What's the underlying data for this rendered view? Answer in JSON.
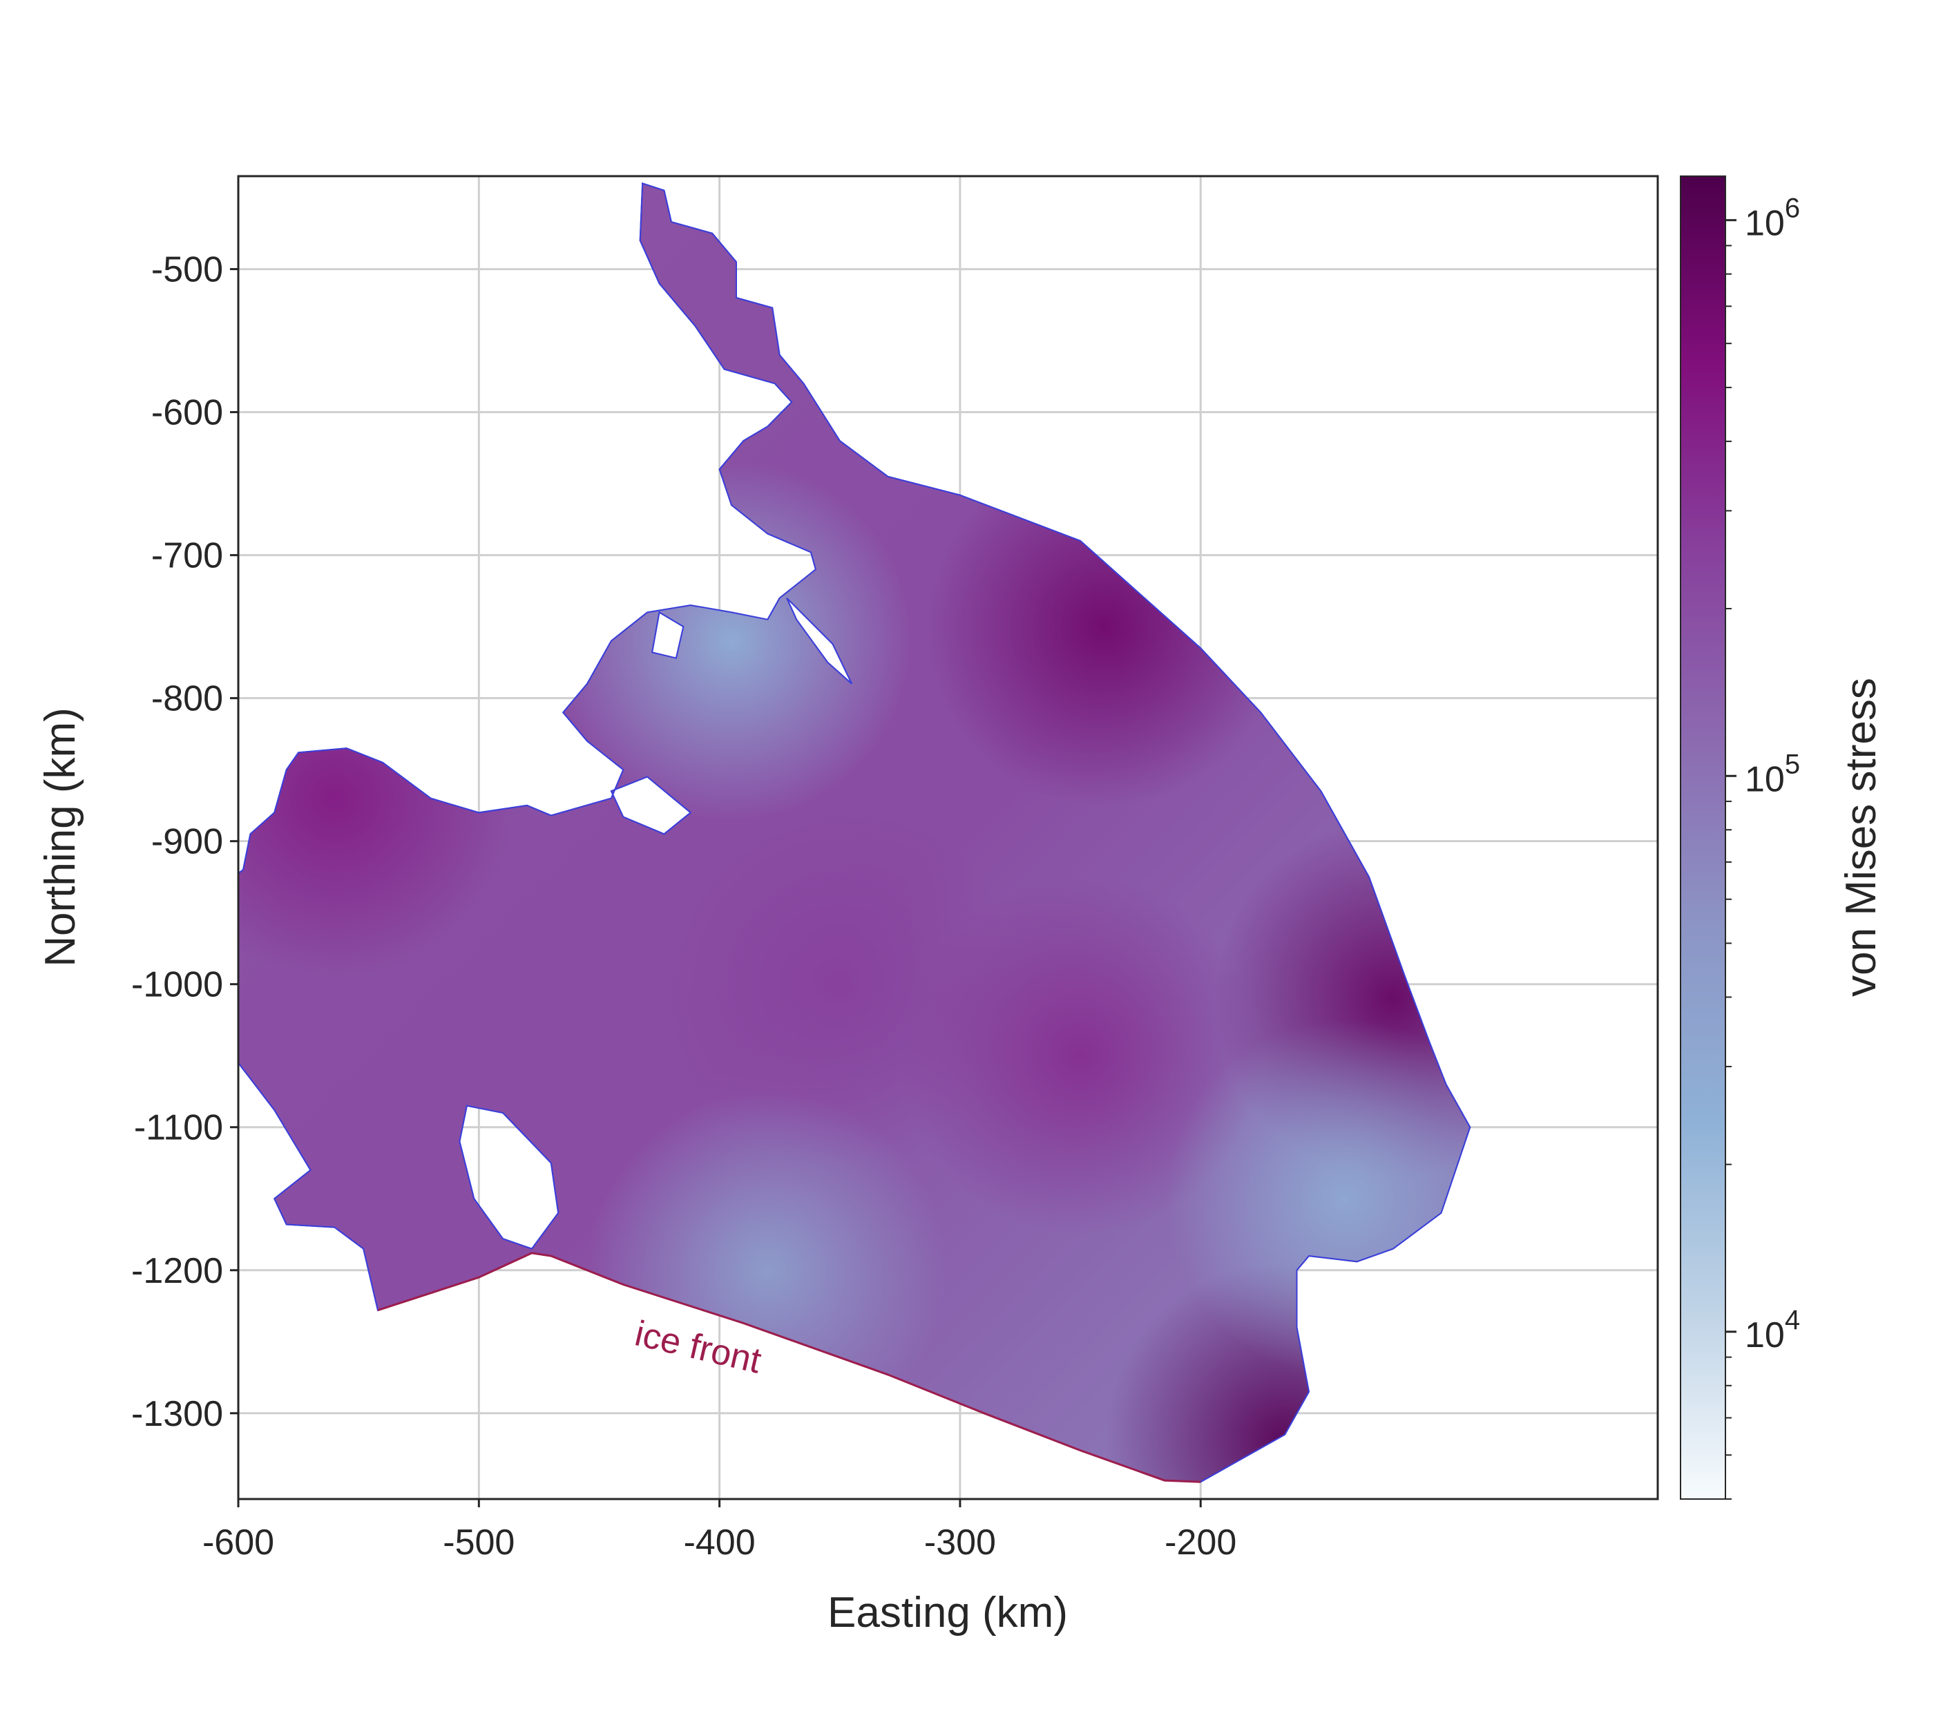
{
  "chart_data": {
    "type": "heatmap",
    "title": "",
    "xlabel": "Easting (km)",
    "ylabel": "Northing (km)",
    "xlim": [
      -600,
      -10
    ],
    "ylim": [
      -1360,
      -435
    ],
    "xticks": [
      -600,
      -500,
      -400,
      -300,
      -200
    ],
    "yticks": [
      -500,
      -600,
      -700,
      -800,
      -900,
      -1000,
      -1100,
      -1200,
      -1300
    ],
    "grid": true,
    "colorbar": {
      "label": "von Mises stress",
      "scale": "log",
      "range": [
        5000,
        1200000
      ],
      "ticks": [
        {
          "value": 10000,
          "base": "10",
          "exp": "4"
        },
        {
          "value": 100000,
          "base": "10",
          "exp": "5"
        },
        {
          "value": 1000000,
          "base": "10",
          "exp": "6"
        }
      ],
      "colors": [
        "#f7fbfd",
        "#bfd3e6",
        "#8fb1d7",
        "#8c96c6",
        "#8c6bb1",
        "#88419d",
        "#810f7c",
        "#4d004b"
      ]
    },
    "annotations": [
      {
        "text": "ice front",
        "x": -410,
        "y": -1262,
        "rotation": 13,
        "color": "#9c1d4d"
      }
    ],
    "ice_front": [
      [
        -542,
        -1228
      ],
      [
        -500,
        -1205
      ],
      [
        -478,
        -1188
      ],
      [
        -470,
        -1190
      ],
      [
        -440,
        -1210
      ],
      [
        -390,
        -1237
      ],
      [
        -330,
        -1273
      ],
      [
        -290,
        -1300
      ],
      [
        -250,
        -1326
      ],
      [
        -215,
        -1347
      ],
      [
        -200,
        -1348
      ]
    ],
    "outline": [
      [
        -432,
        -440
      ],
      [
        -423,
        -445
      ],
      [
        -420,
        -467
      ],
      [
        -403,
        -475
      ],
      [
        -393,
        -495
      ],
      [
        -393,
        -520
      ],
      [
        -378,
        -527
      ],
      [
        -375,
        -560
      ],
      [
        -365,
        -580
      ],
      [
        -350,
        -620
      ],
      [
        -330,
        -645
      ],
      [
        -300,
        -658
      ],
      [
        -250,
        -690
      ],
      [
        -230,
        -720
      ],
      [
        -200,
        -765
      ],
      [
        -175,
        -810
      ],
      [
        -150,
        -865
      ],
      [
        -130,
        -925
      ],
      [
        -115,
        -995
      ],
      [
        -105,
        -1040
      ],
      [
        -98,
        -1070
      ],
      [
        -88,
        -1100
      ],
      [
        -100,
        -1160
      ],
      [
        -120,
        -1185
      ],
      [
        -135,
        -1194
      ],
      [
        -155,
        -1190
      ],
      [
        -160,
        -1200
      ],
      [
        -160,
        -1240
      ],
      [
        -155,
        -1285
      ],
      [
        -165,
        -1315
      ],
      [
        -200,
        -1348
      ],
      [
        -215,
        -1347
      ],
      [
        -250,
        -1326
      ],
      [
        -290,
        -1300
      ],
      [
        -330,
        -1273
      ],
      [
        -390,
        -1237
      ],
      [
        -440,
        -1210
      ],
      [
        -470,
        -1190
      ],
      [
        -478,
        -1188
      ],
      [
        -500,
        -1205
      ],
      [
        -542,
        -1228
      ],
      [
        -548,
        -1185
      ],
      [
        -560,
        -1170
      ],
      [
        -580,
        -1168
      ],
      [
        -585,
        -1150
      ],
      [
        -570,
        -1130
      ],
      [
        -585,
        -1088
      ],
      [
        -600,
        -1055
      ],
      [
        -608,
        -1020
      ],
      [
        -620,
        -995
      ],
      [
        -625,
        -975
      ],
      [
        -625,
        -945
      ],
      [
        -610,
        -935
      ],
      [
        -598,
        -920
      ],
      [
        -595,
        -895
      ],
      [
        -585,
        -880
      ],
      [
        -580,
        -850
      ],
      [
        -575,
        -838
      ],
      [
        -555,
        -835
      ],
      [
        -540,
        -845
      ],
      [
        -520,
        -870
      ],
      [
        -500,
        -880
      ],
      [
        -480,
        -875
      ],
      [
        -470,
        -882
      ],
      [
        -445,
        -870
      ],
      [
        -440,
        -850
      ],
      [
        -455,
        -830
      ],
      [
        -465,
        -810
      ],
      [
        -455,
        -790
      ],
      [
        -445,
        -760
      ],
      [
        -430,
        -740
      ],
      [
        -412,
        -735
      ],
      [
        -395,
        -740
      ],
      [
        -380,
        -745
      ],
      [
        -375,
        -730
      ],
      [
        -360,
        -710
      ],
      [
        -362,
        -698
      ],
      [
        -380,
        -685
      ],
      [
        -395,
        -665
      ],
      [
        -400,
        -640
      ],
      [
        -390,
        -620
      ],
      [
        -380,
        -610
      ],
      [
        -370,
        -593
      ],
      [
        -377,
        -580
      ],
      [
        -398,
        -570
      ],
      [
        -410,
        -540
      ],
      [
        -425,
        -510
      ],
      [
        -433,
        -480
      ]
    ],
    "holes": [
      [
        [
          -490,
          -1090
        ],
        [
          -470,
          -1125
        ],
        [
          -467,
          -1160
        ],
        [
          -478,
          -1185
        ],
        [
          -490,
          -1178
        ],
        [
          -502,
          -1150
        ],
        [
          -508,
          -1110
        ],
        [
          -505,
          -1085
        ]
      ],
      [
        [
          -430,
          -855
        ],
        [
          -412,
          -880
        ],
        [
          -423,
          -895
        ],
        [
          -440,
          -883
        ],
        [
          -445,
          -865
        ]
      ],
      [
        [
          -372,
          -730
        ],
        [
          -353,
          -762
        ],
        [
          -345,
          -790
        ],
        [
          -355,
          -775
        ],
        [
          -368,
          -745
        ]
      ],
      [
        [
          -425,
          -740
        ],
        [
          -415,
          -750
        ],
        [
          -418,
          -772
        ],
        [
          -428,
          -768
        ]
      ]
    ],
    "stress_regions": [
      {
        "x": -560,
        "y": -870,
        "value": 450000
      },
      {
        "x": -395,
        "y": -760,
        "value": 25000
      },
      {
        "x": -240,
        "y": -750,
        "value": 700000
      },
      {
        "x": -120,
        "y": -1010,
        "value": 800000
      },
      {
        "x": -165,
        "y": -1320,
        "value": 1000000
      },
      {
        "x": -250,
        "y": -1050,
        "value": 330000
      },
      {
        "x": -350,
        "y": -1000,
        "value": 250000
      },
      {
        "x": -380,
        "y": -1200,
        "value": 40000
      },
      {
        "x": -140,
        "y": -1150,
        "value": 30000
      }
    ]
  }
}
